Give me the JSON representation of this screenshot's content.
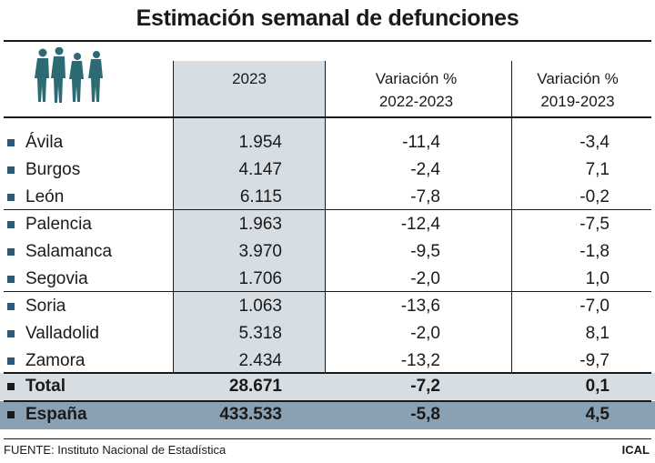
{
  "title": "Estimación semanal de defunciones",
  "header": {
    "col1": "2023",
    "col2_line1": "Variación %",
    "col2_line2": "2022-2023",
    "col3_line1": "Variación %",
    "col3_line2": "2019-2023"
  },
  "chart_data": {
    "type": "table",
    "title": "Estimación semanal de defunciones",
    "columns": [
      "",
      "2023",
      "Variación % 2022-2023",
      "Variación % 2019-2023"
    ],
    "rows": [
      {
        "name": "Ávila",
        "v2023": "1.954",
        "var2223": "-11,4",
        "var1923": "-3,4"
      },
      {
        "name": "Burgos",
        "v2023": "4.147",
        "var2223": "-2,4",
        "var1923": "7,1"
      },
      {
        "name": "León",
        "v2023": "6.115",
        "var2223": "-7,8",
        "var1923": "-0,2"
      },
      {
        "name": "Palencia",
        "v2023": "1.963",
        "var2223": "-12,4",
        "var1923": "-7,5"
      },
      {
        "name": "Salamanca",
        "v2023": "3.970",
        "var2223": "-9,5",
        "var1923": "-1,8"
      },
      {
        "name": "Segovia",
        "v2023": "1.706",
        "var2223": "-2,0",
        "var1923": "1,0"
      },
      {
        "name": "Soria",
        "v2023": "1.063",
        "var2223": "-13,6",
        "var1923": "-7,0"
      },
      {
        "name": "Valladolid",
        "v2023": "5.318",
        "var2223": "-2,0",
        "var1923": "8,1"
      },
      {
        "name": "Zamora",
        "v2023": "2.434",
        "var2223": "-13,2",
        "var1923": "-9,7"
      }
    ],
    "total": {
      "name": "Total",
      "v2023": "28.671",
      "var2223": "-7,2",
      "var1923": "0,1"
    },
    "espana": {
      "name": "España",
      "v2023": "433.533",
      "var2223": "-5,8",
      "var1923": "4,5"
    }
  },
  "footer": {
    "source": "FUENTE: Instituto Nacional de Estadística",
    "brand": "ICAL"
  },
  "colors": {
    "highlight": "#d6dde3",
    "espana_bg": "#8aa1b3",
    "bullet": "#2b5a78",
    "people_icon": "#2d6b74"
  },
  "icons": [
    "people-group-icon"
  ]
}
